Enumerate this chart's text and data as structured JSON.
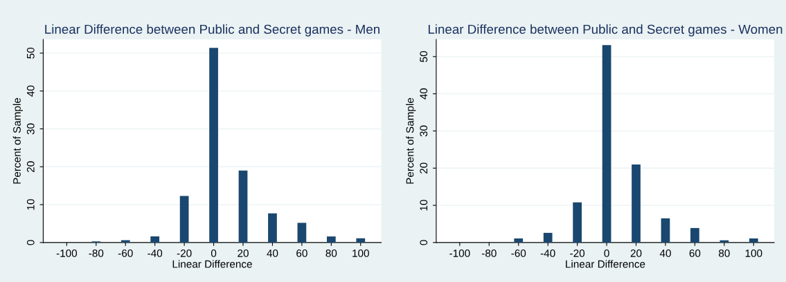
{
  "chart_data": [
    {
      "type": "bar",
      "title": "Linear Difference between Public and Secret games - Men",
      "xlabel": "Linear Difference",
      "ylabel": "Percent of Sample",
      "x": [
        -100,
        -80,
        -60,
        -40,
        -20,
        0,
        20,
        40,
        60,
        80,
        100
      ],
      "values": [
        0,
        0.3,
        0.6,
        1.6,
        12.3,
        51.4,
        19,
        7.7,
        5.2,
        1.6,
        1.1
      ],
      "color": "#1a476f",
      "xlim": [
        -116,
        114
      ],
      "xticks": [
        -100,
        -80,
        -60,
        -40,
        -20,
        0,
        20,
        40,
        60,
        80,
        100
      ],
      "ylim": [
        0,
        53.6
      ],
      "yticks": [
        0,
        10,
        20,
        30,
        40,
        50
      ],
      "grid": "y"
    },
    {
      "type": "bar",
      "title": "Linear Difference between Public and Secret games - Women",
      "xlabel": "Linear Difference",
      "ylabel": "Percent of Sample",
      "x": [
        -100,
        -80,
        -60,
        -40,
        -20,
        0,
        20,
        40,
        60,
        80,
        100
      ],
      "values": [
        0,
        0,
        1.1,
        2.6,
        10.8,
        53.1,
        21,
        6.5,
        3.9,
        0.6,
        1.1
      ],
      "color": "#1a476f",
      "xlim": [
        -116,
        114
      ],
      "xticks": [
        -100,
        -80,
        -60,
        -40,
        -20,
        0,
        20,
        40,
        60,
        80,
        100
      ],
      "ylim": [
        0,
        54.6
      ],
      "yticks": [
        0,
        10,
        20,
        30,
        40,
        50
      ],
      "grid": "y"
    }
  ]
}
